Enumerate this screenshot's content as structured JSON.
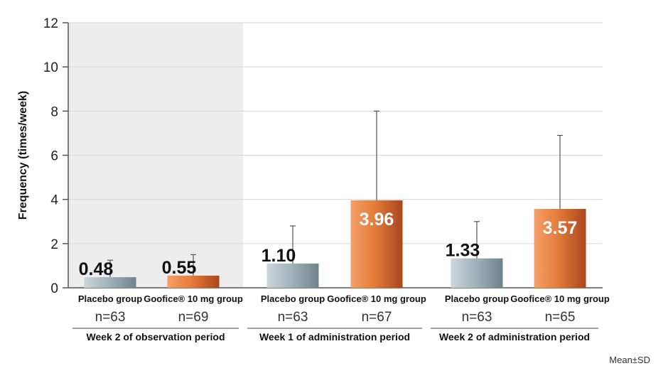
{
  "chart_data": {
    "type": "bar",
    "ylabel": "Frequency (times/week)",
    "ylim": [
      0,
      12
    ],
    "yticks": [
      0,
      2,
      4,
      6,
      8,
      10,
      12
    ],
    "grid": true,
    "note": "Mean±SD",
    "groups": [
      {
        "label": "Week 2 of observation period",
        "shaded": true,
        "bars": [
          {
            "category": "Placebo group",
            "n_label": "n=63",
            "value": 0.48,
            "value_label": "0.48",
            "sd_upper": 1.25,
            "series": "placebo"
          },
          {
            "category": "Goofice® 10 mg group",
            "n_label": "n=69",
            "value": 0.55,
            "value_label": "0.55",
            "sd_upper": 1.5,
            "series": "goofice"
          }
        ]
      },
      {
        "label": "Week 1 of administration period",
        "shaded": false,
        "bars": [
          {
            "category": "Placebo group",
            "n_label": "n=63",
            "value": 1.1,
            "value_label": "1.10",
            "sd_upper": 2.8,
            "series": "placebo"
          },
          {
            "category": "Goofice® 10 mg group",
            "n_label": "n=67",
            "value": 3.96,
            "value_label": "3.96",
            "sd_upper": 8.0,
            "series": "goofice"
          }
        ]
      },
      {
        "label": "Week 2 of administration period",
        "shaded": false,
        "bars": [
          {
            "category": "Placebo group",
            "n_label": "n=63",
            "value": 1.33,
            "value_label": "1.33",
            "sd_upper": 3.0,
            "series": "placebo"
          },
          {
            "category": "Goofice® 10 mg group",
            "n_label": "n=65",
            "value": 3.57,
            "value_label": "3.57",
            "sd_upper": 6.9,
            "series": "goofice"
          }
        ]
      }
    ],
    "colors": {
      "placebo": "#9fb0b8",
      "goofice": "#e07a3c",
      "shade": "#ededed",
      "grid": "#d8d8d8"
    }
  }
}
